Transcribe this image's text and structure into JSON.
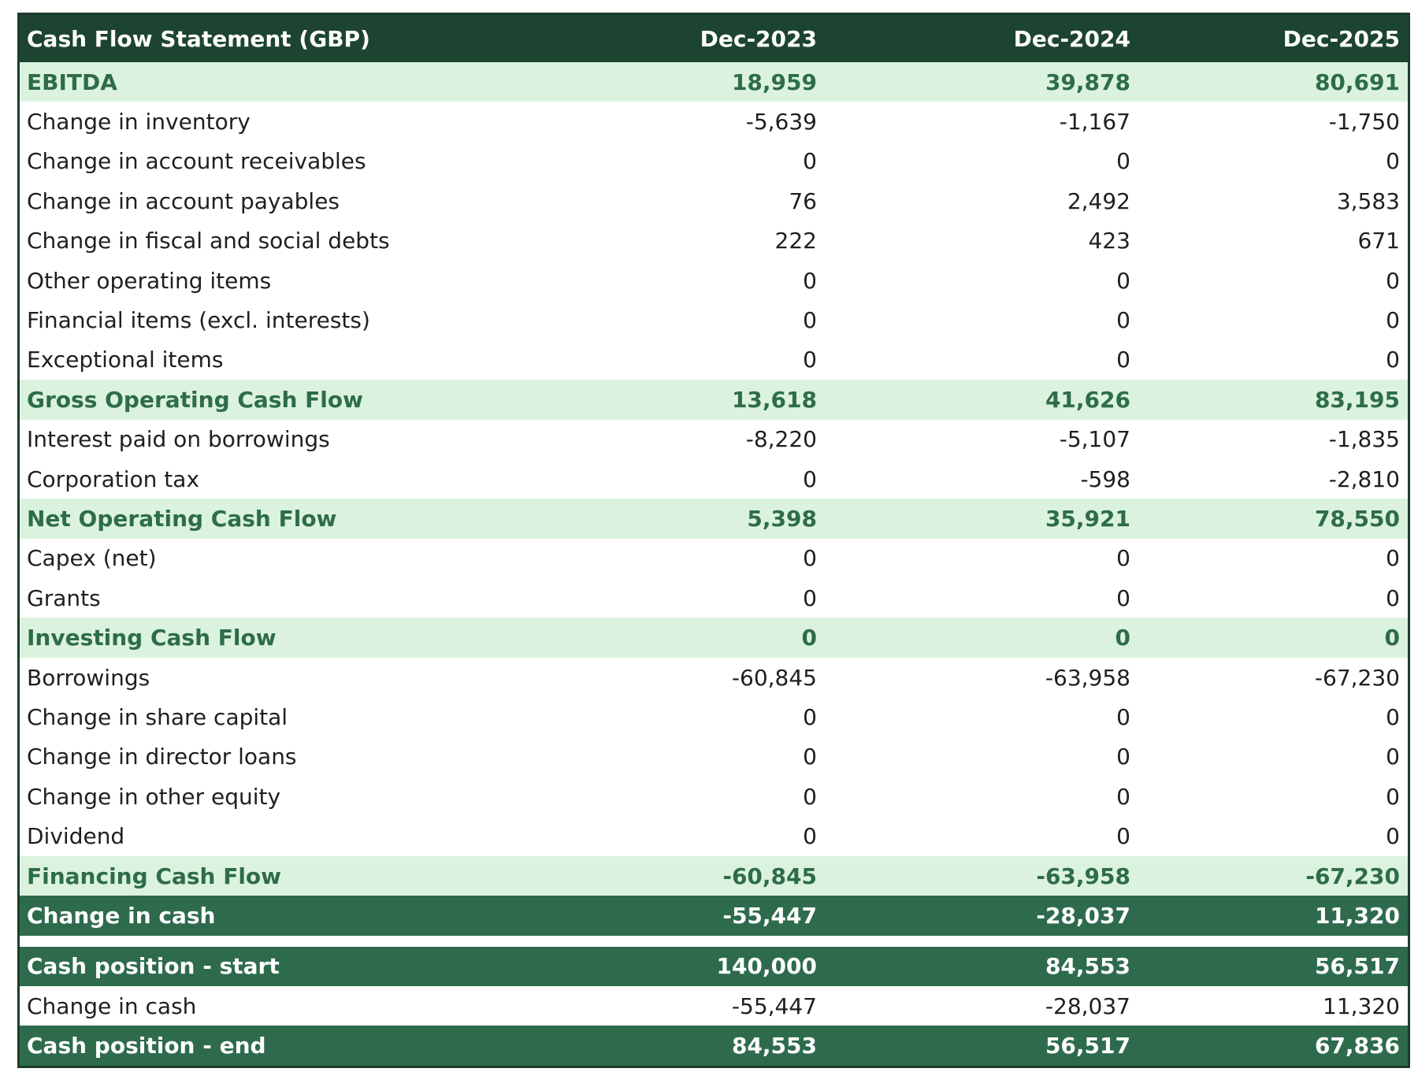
{
  "table": {
    "title": "Cash Flow Statement (GBP)",
    "columns": [
      "Dec-2023",
      "Dec-2024",
      "Dec-2025"
    ],
    "rows": [
      {
        "label": "EBITDA",
        "values": [
          "18,959",
          "39,878",
          "80,691"
        ],
        "style": "section"
      },
      {
        "label": "Change in inventory",
        "values": [
          "-5,639",
          "-1,167",
          "-1,750"
        ],
        "style": "plain"
      },
      {
        "label": "Change in account receivables",
        "values": [
          "0",
          "0",
          "0"
        ],
        "style": "plain"
      },
      {
        "label": "Change in account payables",
        "values": [
          "76",
          "2,492",
          "3,583"
        ],
        "style": "plain"
      },
      {
        "label": "Change in fiscal and social debts",
        "values": [
          "222",
          "423",
          "671"
        ],
        "style": "plain"
      },
      {
        "label": "Other operating items",
        "values": [
          "0",
          "0",
          "0"
        ],
        "style": "plain"
      },
      {
        "label": "Financial items (excl. interests)",
        "values": [
          "0",
          "0",
          "0"
        ],
        "style": "plain"
      },
      {
        "label": "Exceptional items",
        "values": [
          "0",
          "0",
          "0"
        ],
        "style": "plain"
      },
      {
        "label": "Gross Operating Cash Flow",
        "values": [
          "13,618",
          "41,626",
          "83,195"
        ],
        "style": "section"
      },
      {
        "label": "Interest paid on borrowings",
        "values": [
          "-8,220",
          "-5,107",
          "-1,835"
        ],
        "style": "plain"
      },
      {
        "label": "Corporation tax",
        "values": [
          "0",
          "-598",
          "-2,810"
        ],
        "style": "plain"
      },
      {
        "label": "Net Operating Cash Flow",
        "values": [
          "5,398",
          "35,921",
          "78,550"
        ],
        "style": "section"
      },
      {
        "label": "Capex (net)",
        "values": [
          "0",
          "0",
          "0"
        ],
        "style": "plain"
      },
      {
        "label": "Grants",
        "values": [
          "0",
          "0",
          "0"
        ],
        "style": "plain"
      },
      {
        "label": "Investing Cash Flow",
        "values": [
          "0",
          "0",
          "0"
        ],
        "style": "section"
      },
      {
        "label": "Borrowings",
        "values": [
          "-60,845",
          "-63,958",
          "-67,230"
        ],
        "style": "plain"
      },
      {
        "label": "Change in share capital",
        "values": [
          "0",
          "0",
          "0"
        ],
        "style": "plain"
      },
      {
        "label": "Change in director loans",
        "values": [
          "0",
          "0",
          "0"
        ],
        "style": "plain"
      },
      {
        "label": "Change in other equity",
        "values": [
          "0",
          "0",
          "0"
        ],
        "style": "plain"
      },
      {
        "label": "Dividend",
        "values": [
          "0",
          "0",
          "0"
        ],
        "style": "plain"
      },
      {
        "label": "Financing Cash Flow",
        "values": [
          "-60,845",
          "-63,958",
          "-67,230"
        ],
        "style": "section"
      },
      {
        "label": "Change in cash",
        "values": [
          "-55,447",
          "-28,037",
          "11,320"
        ],
        "style": "total"
      }
    ],
    "position_rows": [
      {
        "label": "Cash position - start",
        "values": [
          "140,000",
          "84,553",
          "56,517"
        ],
        "style": "total"
      },
      {
        "label": "Change in cash",
        "values": [
          "-55,447",
          "-28,037",
          "11,320"
        ],
        "style": "plain"
      },
      {
        "label": "Cash position - end",
        "values": [
          "84,553",
          "56,517",
          "67,836"
        ],
        "style": "total"
      }
    ]
  },
  "colors": {
    "header_bg": "#1d4430",
    "section_bg": "#dbf3de",
    "section_text": "#2e6c4a",
    "total_bg": "#2e6b4d"
  }
}
